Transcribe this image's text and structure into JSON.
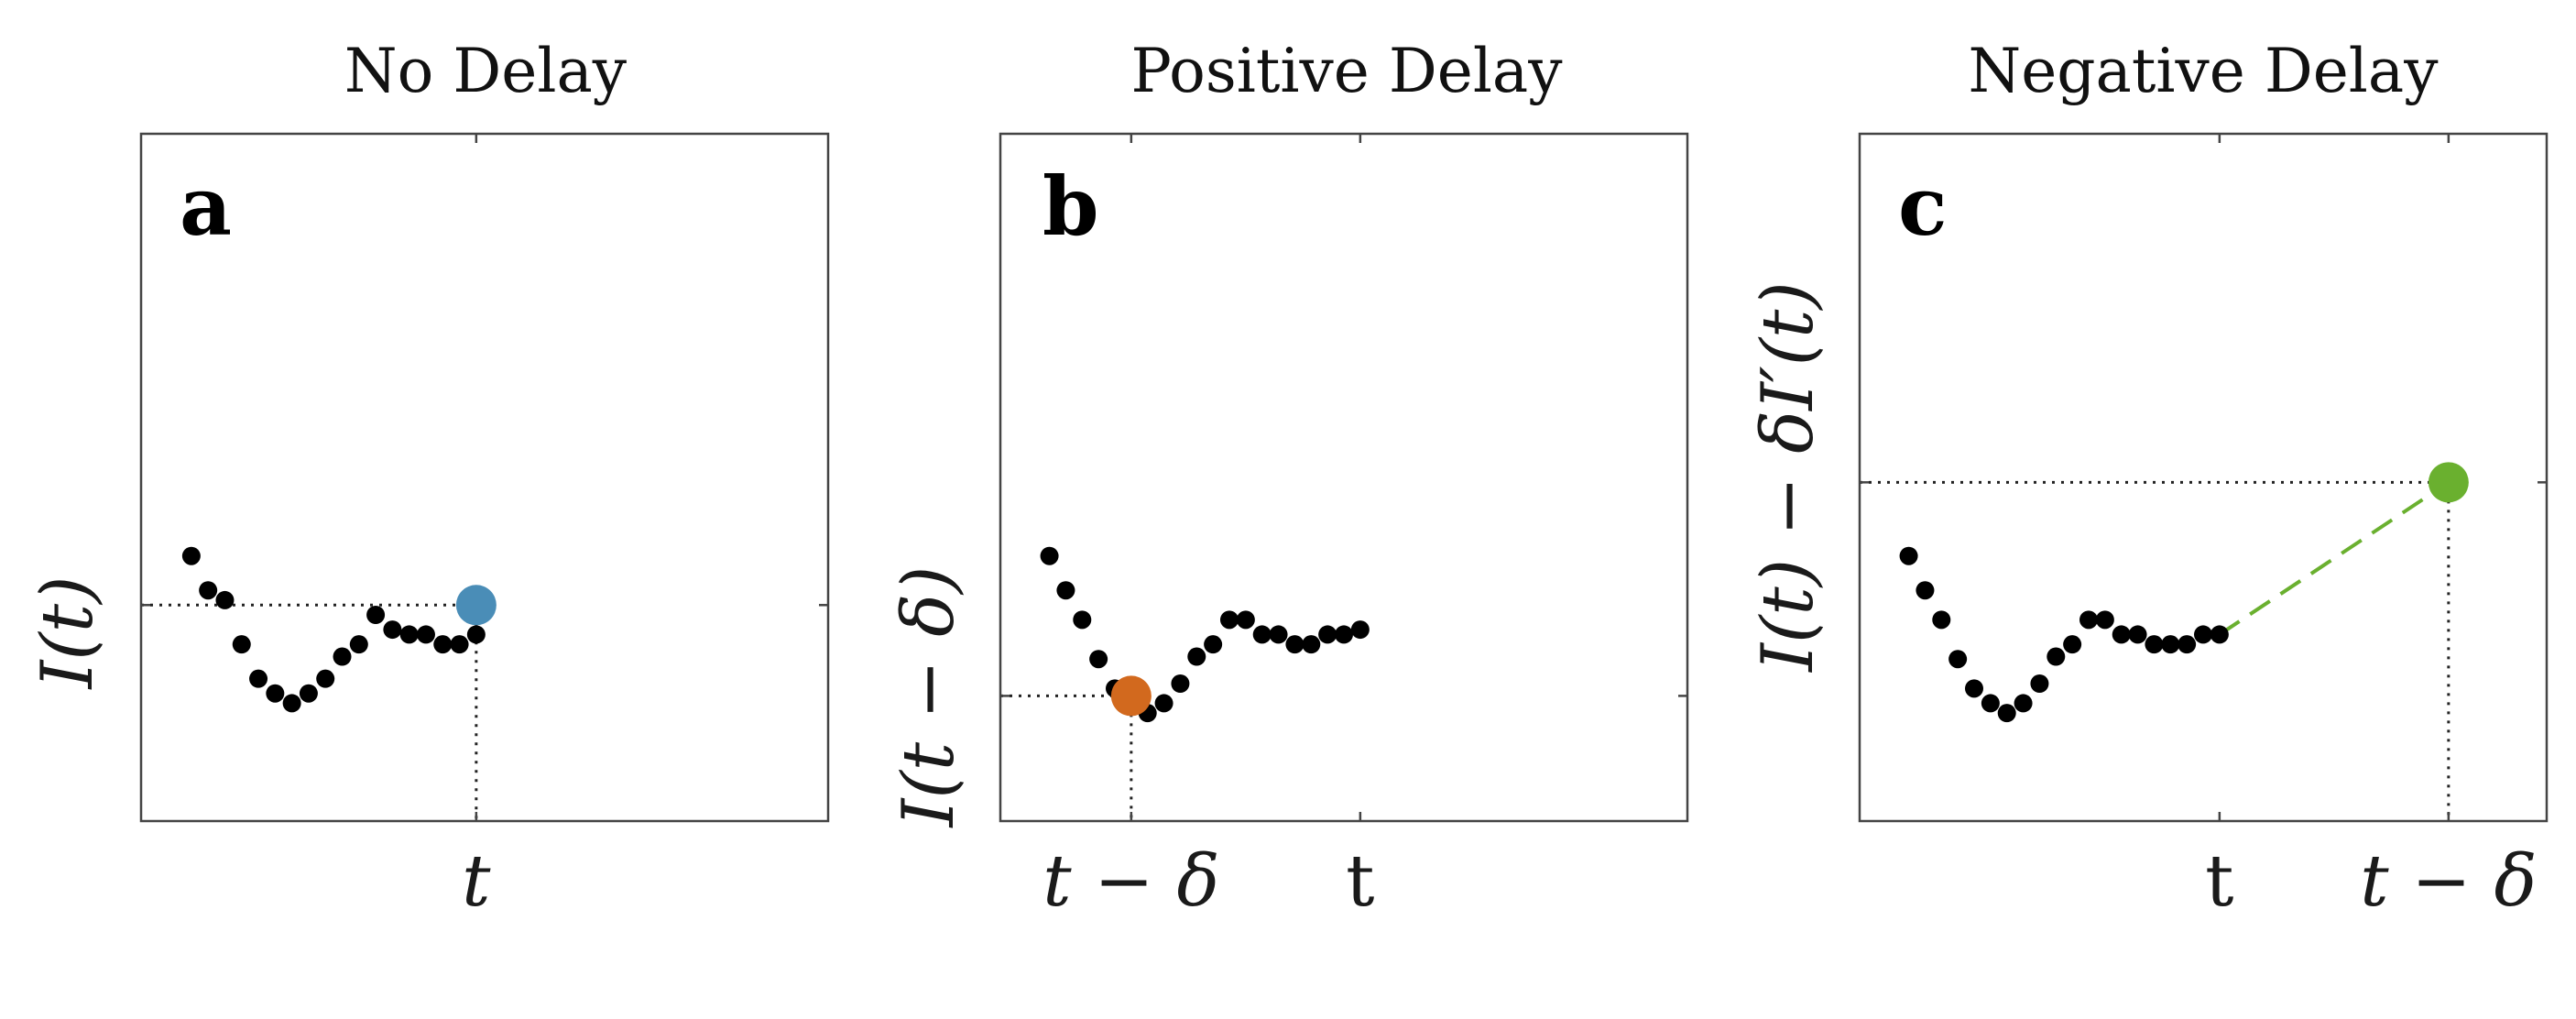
{
  "colors": {
    "points": "#000000",
    "highlight_a": "#4a8db7",
    "highlight_b": "#d2691e",
    "highlight_c": "#6ab02f"
  },
  "chart_data": [
    {
      "type": "scatter",
      "title": "No Delay",
      "panel_label": "a",
      "ylabel": "I(t)",
      "xticks": [
        {
          "x": 19,
          "label": "t",
          "italic": true
        }
      ],
      "ytick": 0.88,
      "xlim": [
        -1,
        40
      ],
      "ylim": [
        0,
        2.8
      ],
      "grid": false,
      "series": [
        {
          "x": [
            2,
            3,
            4,
            5,
            6,
            7,
            8,
            9,
            10,
            11,
            12,
            13,
            14,
            15,
            16,
            17,
            18,
            19
          ],
          "y": [
            1.08,
            0.94,
            0.9,
            0.72,
            0.58,
            0.52,
            0.48,
            0.52,
            0.58,
            0.67,
            0.72,
            0.84,
            0.78,
            0.76,
            0.76,
            0.72,
            0.72,
            0.76
          ]
        }
      ],
      "highlight": {
        "x": 19,
        "y": 0.88,
        "color_key": "highlight_a",
        "guide": "to-left-and-down"
      }
    },
    {
      "type": "scatter",
      "title": "Positive Delay",
      "panel_label": "b",
      "ylabel": "I(t − δ)",
      "xticks": [
        {
          "x": 6,
          "label": "t − δ",
          "italic": true
        },
        {
          "x": 20,
          "label": "t",
          "italic": false
        }
      ],
      "ytick": 0.51,
      "xlim": [
        -2,
        40
      ],
      "ylim": [
        0,
        2.8
      ],
      "grid": false,
      "series": [
        {
          "x": [
            1,
            2,
            3,
            4,
            5,
            6,
            7,
            8,
            9,
            10,
            11,
            12,
            13,
            14,
            15,
            16,
            17,
            18,
            19,
            20
          ],
          "y": [
            1.08,
            0.94,
            0.82,
            0.66,
            0.54,
            0.47,
            0.44,
            0.48,
            0.56,
            0.67,
            0.72,
            0.82,
            0.82,
            0.76,
            0.76,
            0.72,
            0.72,
            0.76,
            0.76,
            0.78
          ]
        }
      ],
      "highlight": {
        "x": 6,
        "y": 0.51,
        "color_key": "highlight_b",
        "guide": "to-left-and-down"
      }
    },
    {
      "type": "scatter",
      "title": "Negative Delay",
      "panel_label": "c",
      "ylabel": "I(t) − δI′(t)",
      "xticks": [
        {
          "x": 20,
          "label": "t",
          "italic": false
        },
        {
          "x": 34,
          "label": "t − δ",
          "italic": true
        }
      ],
      "ytick": 1.38,
      "xlim": [
        -2,
        40
      ],
      "ylim": [
        0,
        2.8
      ],
      "grid": false,
      "series": [
        {
          "x": [
            1,
            2,
            3,
            4,
            5,
            6,
            7,
            8,
            9,
            10,
            11,
            12,
            13,
            14,
            15,
            16,
            17,
            18,
            19,
            20
          ],
          "y": [
            1.08,
            0.94,
            0.82,
            0.66,
            0.54,
            0.48,
            0.44,
            0.48,
            0.56,
            0.67,
            0.72,
            0.82,
            0.82,
            0.76,
            0.76,
            0.72,
            0.72,
            0.72,
            0.76,
            0.76
          ]
        }
      ],
      "highlight": {
        "x": 34,
        "y": 1.38,
        "color_key": "highlight_c",
        "guide": "to-left-and-down",
        "dashed_from_x": 20,
        "dashed_from_y": 0.76
      }
    }
  ]
}
